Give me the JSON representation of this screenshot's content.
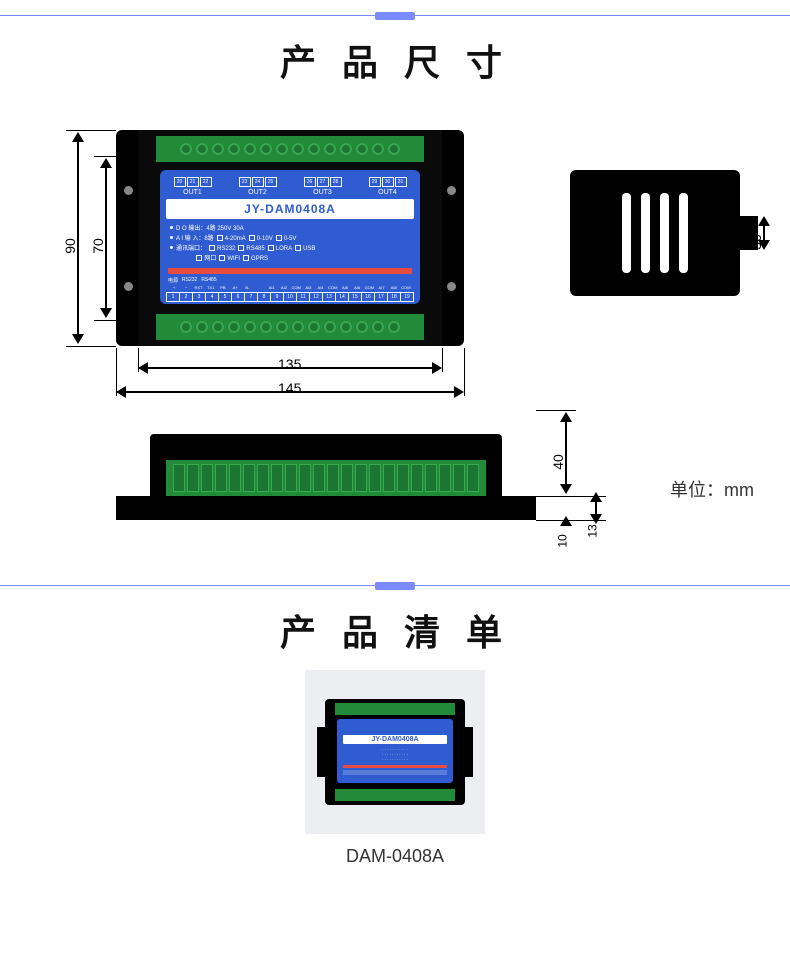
{
  "section1_title": "产 品 尺 寸",
  "section2_title": "产 品 清 单",
  "model": "JY-DAM0408A",
  "thumb_caption": "DAM-0408A",
  "unit": "单位：mm",
  "dims": {
    "dim_90": "90",
    "dim_70": "70",
    "dim_135": "135",
    "dim_145": "145",
    "dim_36": "36",
    "dim_40": "40",
    "dim_13": "13",
    "dim_10": "10"
  },
  "top_pins": [
    [
      "20",
      "21",
      "22"
    ],
    [
      "23",
      "24",
      "25"
    ],
    [
      "26",
      "27",
      "28"
    ],
    [
      "29",
      "30",
      "31"
    ]
  ],
  "out_labels": [
    "OUT1",
    "OUT2",
    "OUT3",
    "OUT4"
  ],
  "spec": {
    "l1a": "D O 输出：",
    "l1b": "4路 250V 30A",
    "l2a": "A I 输 入：",
    "l2b": "8路",
    "opts2": [
      "4-20mA",
      "0-10V",
      "0-5V"
    ],
    "l3a": "通讯端口：",
    "opts3": [
      "RS232",
      "RS485",
      "LORA",
      "USB"
    ],
    "opts4": [
      "网口",
      "WIFI",
      "GPRS"
    ]
  },
  "legend": [
    "电源",
    "RS232",
    "RS485"
  ],
  "sublegend": [
    "+",
    "−",
    "RXT",
    "TX1",
    "PB",
    "A+",
    "B-",
    "",
    "AI1",
    "AI2",
    "COM",
    "AI3",
    "AI4",
    "COM",
    "AI5",
    "AI6",
    "COM",
    "AI7",
    "AI8",
    "COM"
  ],
  "bottom_nums": [
    "1",
    "2",
    "3",
    "4",
    "5",
    "6",
    "7",
    "8",
    "9",
    "10",
    "11",
    "12",
    "13",
    "14",
    "15",
    "16",
    "17",
    "18",
    "19"
  ],
  "colors": {
    "blue": "#2f5cd0",
    "green": "#218b3a",
    "red": "#e94b3f",
    "divider": "#7a8bff",
    "black": "#000"
  }
}
